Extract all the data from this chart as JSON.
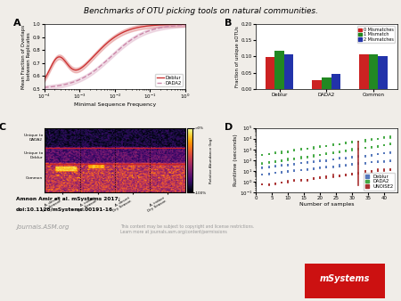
{
  "title": "Benchmarks of OTU picking tools on natural communities.",
  "bg_color": "#f0ede8",
  "panel_A": {
    "label": "A",
    "xlabel": "Minimal Sequence Frequency",
    "ylabel": "Mean Fraction of Overlaps\nbetween Replicates",
    "deblur_color": "#cc3333",
    "dada2_color": "#cc88aa",
    "ylim": [
      0.5,
      1.0
    ]
  },
  "panel_B": {
    "label": "B",
    "ylabel": "Fraction of unique sOTUs",
    "ylim": [
      0.0,
      0.2
    ],
    "categories": [
      "Deblur",
      "DADA2",
      "Common"
    ],
    "legend": [
      "0 Mismatches",
      "1 Mismatch",
      "2 Mismatches"
    ],
    "colors": [
      "#cc2222",
      "#228822",
      "#2233aa"
    ],
    "values": {
      "Deblur": [
        0.099,
        0.119,
        0.106
      ],
      "DADA2": [
        0.028,
        0.034,
        0.046
      ],
      "Common": [
        0.106,
        0.106,
        0.1
      ]
    }
  },
  "panel_C": {
    "label": "C",
    "colormap": "inferno",
    "xlabel_labels": [
      "A. desert\nDry Season",
      "A. indoor\nDry Season",
      "A. desert\nDry Season",
      "A. indoor\nDry Season"
    ],
    "ytick_labels": [
      "Unique to\nDADA2",
      "Unique to\nDeblur",
      "Common"
    ],
    "colorbar_label": "Relative Abundance (log)",
    "colorbar_ticks": [
      "-100%",
      ">0%"
    ]
  },
  "panel_D": {
    "label": "D",
    "xlabel": "Number of samples",
    "ylabel": "Runtime (seconds)",
    "deblur_color": "#5577bb",
    "dada2_color": "#44aa44",
    "unoise2_color": "#aa3333",
    "legend": [
      "Deblur",
      "DADA2",
      "UNOISE2"
    ],
    "xvalues": [
      2,
      4,
      6,
      8,
      10,
      12,
      14,
      16,
      18,
      20,
      22,
      24,
      26,
      28,
      30,
      32,
      34,
      36,
      38,
      40,
      42
    ]
  },
  "footer_author": "Amnon Amir et al. mSystems 2017;",
  "footer_doi": "doi:10.1128/mSystems.00191-16",
  "footer_journal": "Journals.ASM.org",
  "footer_permissions": "This content may be subject to copyright and license restrictions.\nLearn more at journals.asm.org/content/permissions"
}
